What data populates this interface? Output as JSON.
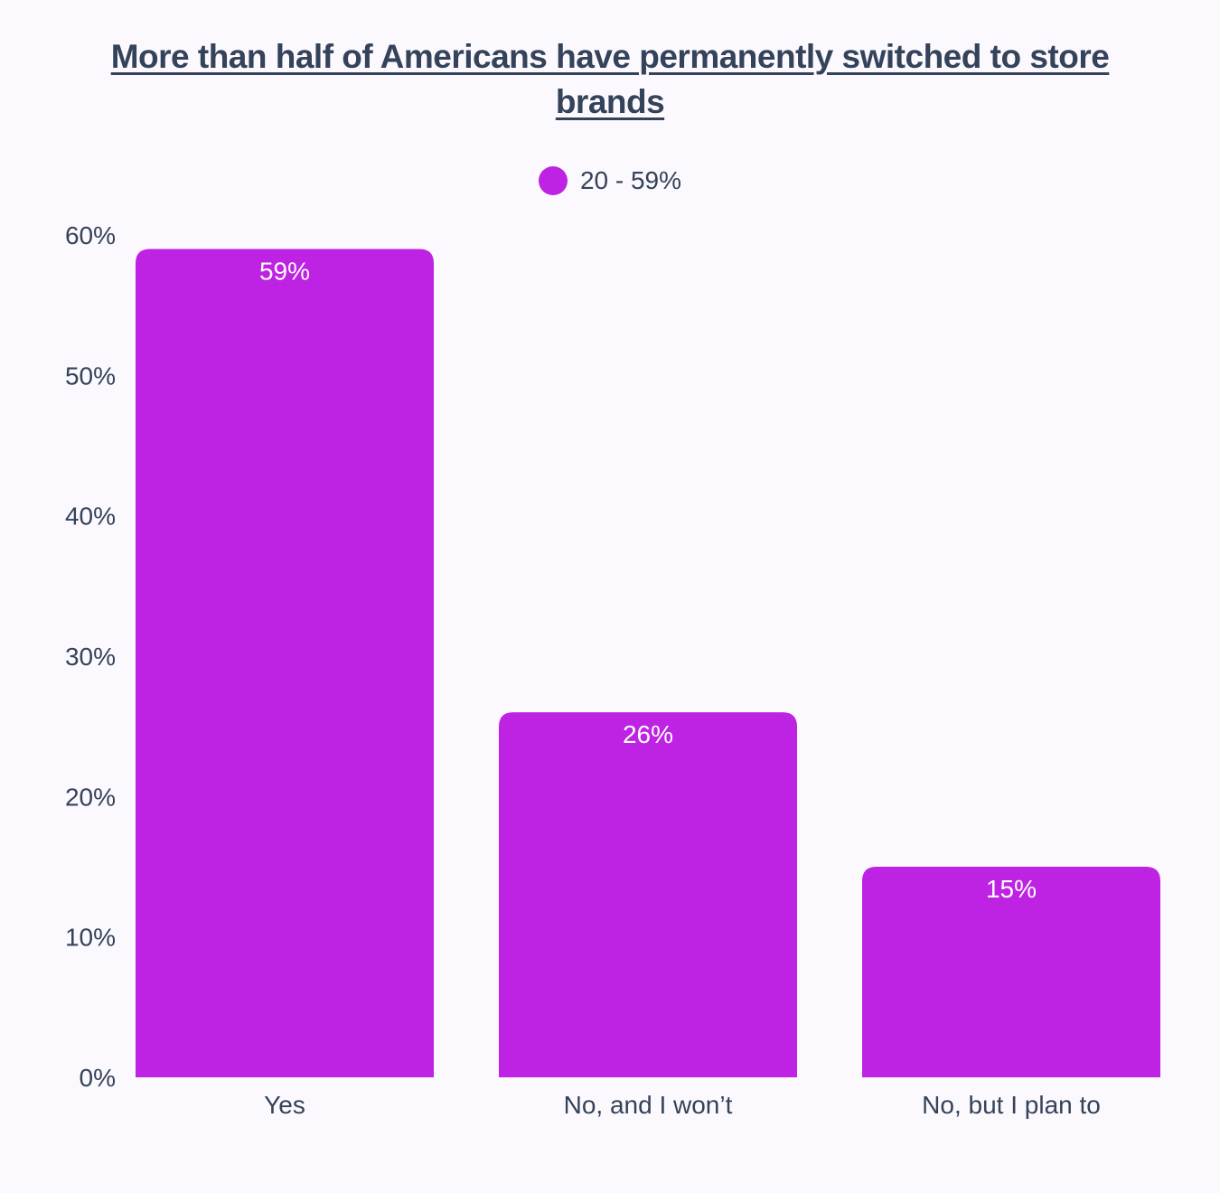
{
  "chart_data": {
    "type": "bar",
    "title": "More than half of Americans have permanently switched to store brands",
    "categories": [
      "Yes",
      "No, and I won’t",
      "No, but I plan to"
    ],
    "series": [
      {
        "name": "20 - 59%",
        "values": [
          59,
          26,
          15
        ],
        "color": "#be22e2"
      }
    ],
    "data_labels": [
      "59%",
      "26%",
      "15%"
    ],
    "y_ticks": [
      0,
      10,
      20,
      30,
      40,
      50,
      60
    ],
    "y_tick_labels": [
      "0%",
      "10%",
      "20%",
      "30%",
      "40%",
      "50%",
      "60%"
    ],
    "ylim": [
      0,
      60
    ],
    "xlabel": "",
    "ylabel": "",
    "grid": false,
    "legend_position": "top-center"
  },
  "colors": {
    "background": "#fbf9fd",
    "text": "#34425a",
    "bar": "#be22e2",
    "data_label": "#ffffff"
  }
}
